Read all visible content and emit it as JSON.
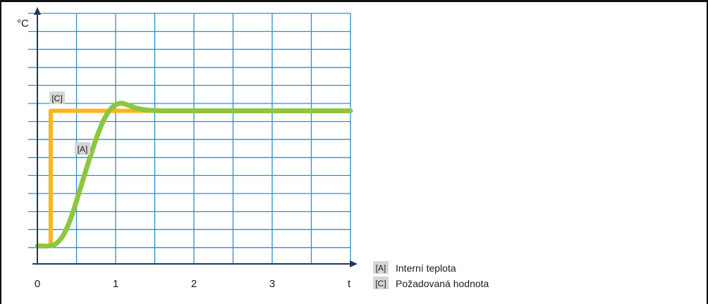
{
  "chart_data": {
    "type": "line",
    "ylabel": "°C",
    "xlabel": "t",
    "x_ticks": [
      "0",
      "1",
      "2",
      "3"
    ],
    "xlim": [
      0,
      4
    ],
    "grid": true,
    "legend_position": "bottom-right",
    "series": [
      {
        "key": "A",
        "tag": "[A]",
        "name": "Interní teplota",
        "color": "#8dc63f",
        "x": [
          0,
          0.15,
          0.25,
          0.35,
          0.45,
          0.55,
          0.65,
          0.75,
          0.85,
          0.95,
          1.05,
          1.15,
          1.25,
          1.4,
          1.6,
          2.0,
          3.0,
          4.0
        ],
        "y": [
          0.05,
          0.05,
          0.07,
          0.14,
          0.27,
          0.44,
          0.61,
          0.77,
          0.9,
          0.98,
          1.01,
          1.0,
          0.98,
          0.965,
          0.96,
          0.96,
          0.96,
          0.96
        ]
      },
      {
        "key": "C",
        "tag": "[C]",
        "name": "Požadovaná hodnota",
        "color": "#f7b718",
        "x": [
          0,
          0.17,
          0.17,
          4.0
        ],
        "y": [
          0.05,
          0.05,
          0.96,
          0.96
        ]
      }
    ]
  }
}
